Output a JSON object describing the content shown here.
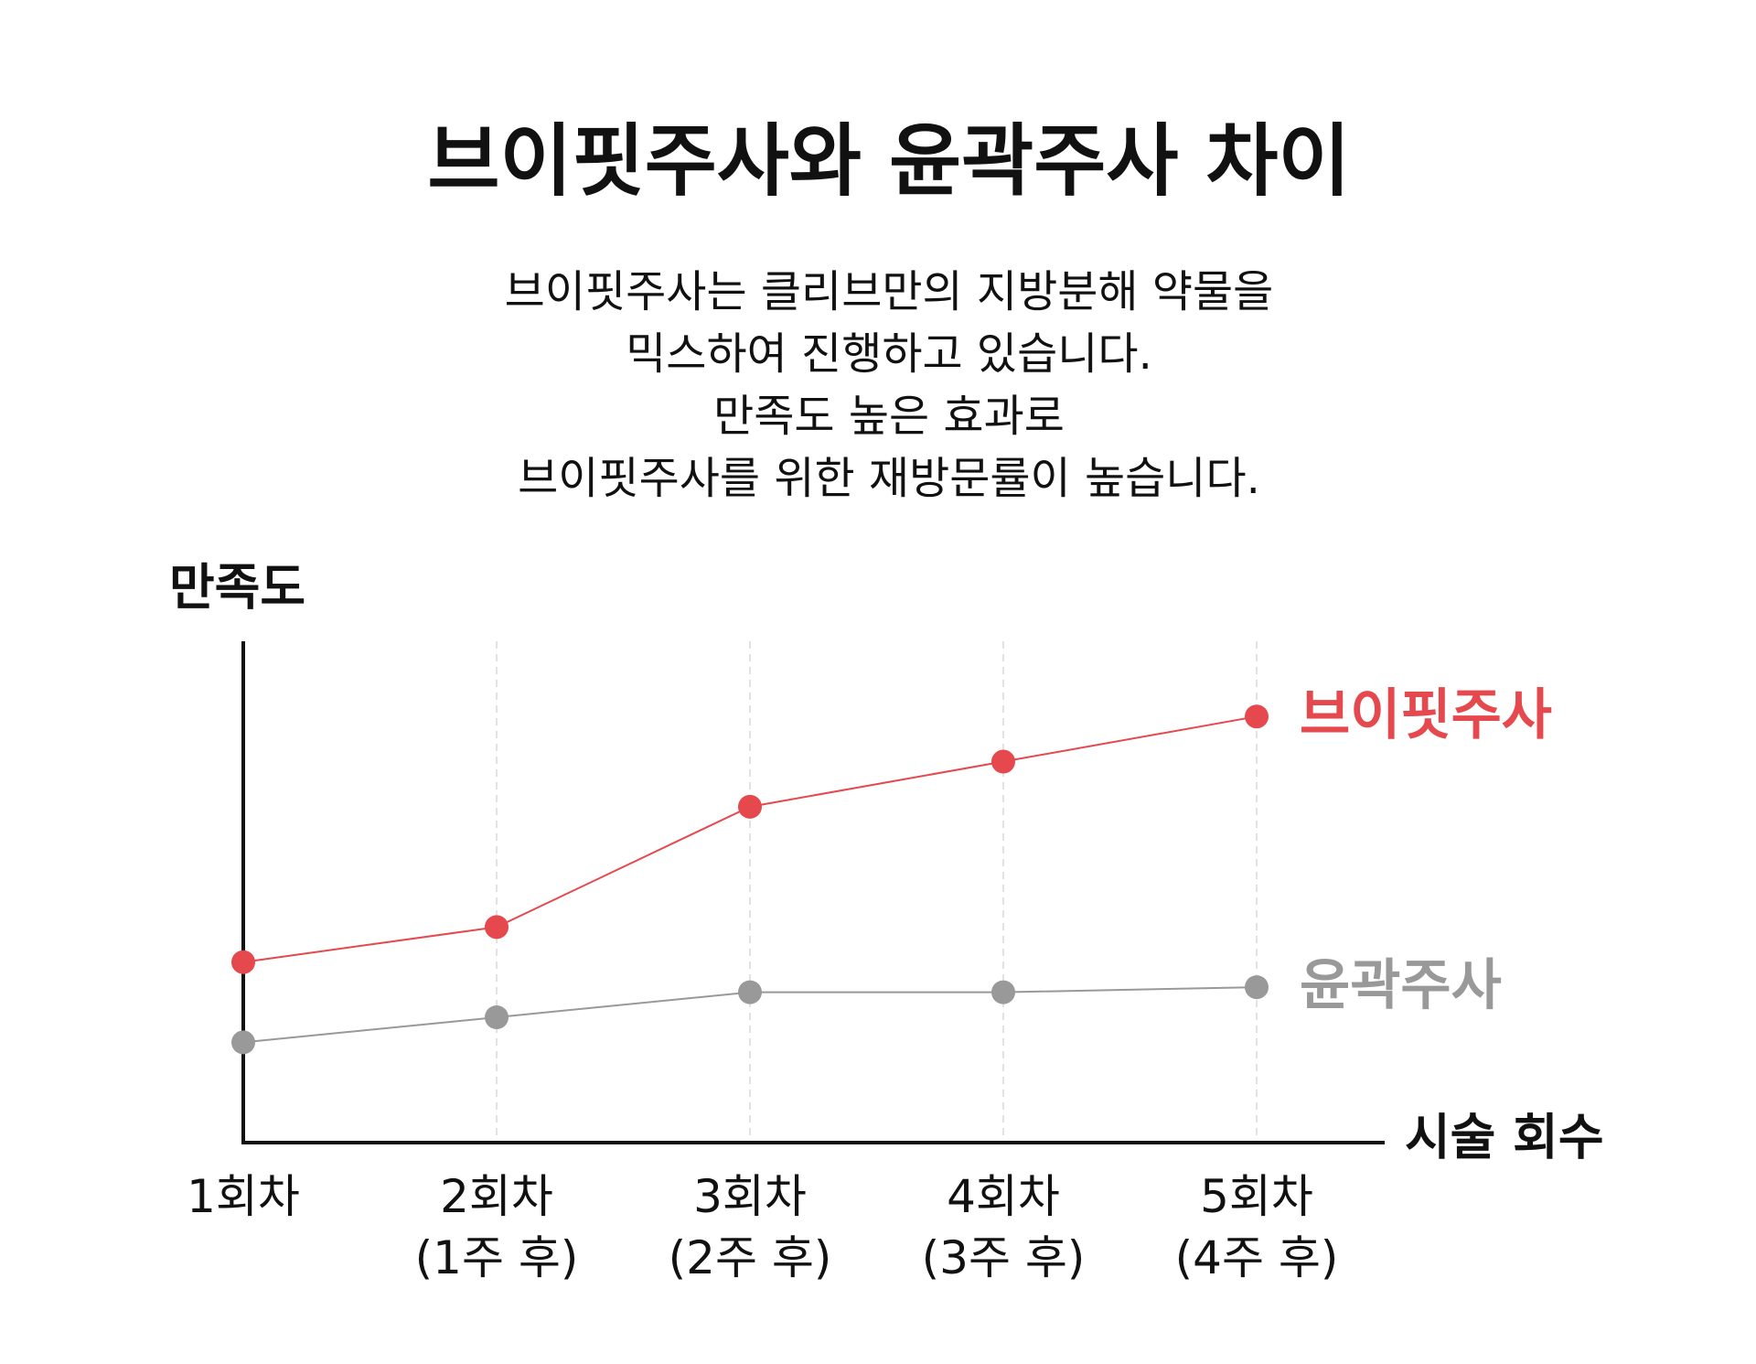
{
  "chart_data": {
    "type": "line",
    "title": "브이핏주사와 윤곽주사 차이",
    "subtitle": [
      "브이핏주사는 클리브만의 지방분해 약물을",
      "믹스하여 진행하고 있습니다.",
      "만족도 높은 효과로",
      "브이핏주사를 위한 재방문률이 높습니다."
    ],
    "y_label": "만족도",
    "x_label": "시술 회수",
    "categories": [
      "1회차",
      "2회차\n(1주 후)",
      "3회차\n(2주 후)",
      "4회차\n(3주 후)",
      "5회차\n(4주 후)"
    ],
    "series": [
      {
        "name": "브이핏주사",
        "color": "#e5484d",
        "values": [
          36,
          43,
          67,
          76,
          85
        ]
      },
      {
        "name": "윤곽주사",
        "color": "#999999",
        "values": [
          20,
          25,
          30,
          30,
          31
        ]
      }
    ],
    "ylim": [
      0,
      100
    ],
    "grid": true
  }
}
